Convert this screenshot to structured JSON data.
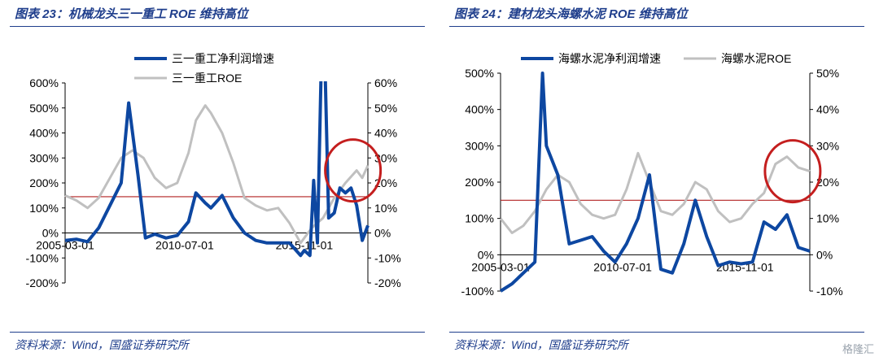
{
  "colors": {
    "primary": "#0d47a1",
    "secondary": "#c0c0c0",
    "threshold": "#b22222",
    "highlight": "#c41e1e",
    "text_accent": "#1f3e8c"
  },
  "watermark": "格隆汇",
  "panels": [
    {
      "title": "图表 23：机械龙头三一重工 ROE 维持高位",
      "source": "资料来源：Wind，国盛证券研究所"
    },
    {
      "title": "图表 24：建材龙头海螺水泥 ROE 维持高位",
      "source": "资料来源：Wind，国盛证券研究所"
    }
  ],
  "chart_data": [
    {
      "type": "line",
      "x_ticks": [
        "2005-03-01",
        "2010-07-01",
        "2015-11-01"
      ],
      "x_range": [
        "2005-03-01",
        "2018-09-01"
      ],
      "left_axis": {
        "range": [
          -200,
          600
        ],
        "ticks": [
          "-200%",
          "-100%",
          "0%",
          "100%",
          "200%",
          "300%",
          "400%",
          "500%",
          "600%"
        ]
      },
      "right_axis": {
        "range": [
          -20,
          60
        ],
        "ticks": [
          "-20%",
          "-10%",
          "0%",
          "10%",
          "20%",
          "30%",
          "40%",
          "50%",
          "60%"
        ]
      },
      "threshold_right": 14.5,
      "highlight": {
        "x": "2018-01-01",
        "y_right": 25
      },
      "legend_position": "top",
      "series": [
        {
          "name": "三一重工净利润增速",
          "axis": "left",
          "x": [
            "2005-03",
            "2005-09",
            "2006-03",
            "2006-09",
            "2007-03",
            "2007-09",
            "2008-01",
            "2008-06",
            "2008-10",
            "2009-03",
            "2009-09",
            "2010-03",
            "2010-09",
            "2011-01",
            "2011-06",
            "2011-09",
            "2012-03",
            "2012-09",
            "2013-03",
            "2013-09",
            "2014-03",
            "2014-09",
            "2015-03",
            "2015-09",
            "2015-11",
            "2016-02",
            "2016-04",
            "2016-06",
            "2016-09",
            "2016-12",
            "2017-03",
            "2017-06",
            "2017-09",
            "2017-12",
            "2018-03",
            "2018-06",
            "2018-09"
          ],
          "values": [
            -30,
            -25,
            -35,
            20,
            110,
            200,
            520,
            230,
            -20,
            -5,
            -20,
            -10,
            45,
            160,
            120,
            100,
            150,
            60,
            0,
            -30,
            -40,
            -40,
            -40,
            -90,
            -70,
            -90,
            210,
            -40,
            1000,
            60,
            80,
            180,
            160,
            180,
            110,
            -30,
            30
          ]
        },
        {
          "name": "三一重工ROE",
          "axis": "right",
          "x": [
            "2005-03",
            "2005-09",
            "2006-03",
            "2006-09",
            "2007-03",
            "2007-09",
            "2008-03",
            "2008-09",
            "2009-03",
            "2009-09",
            "2010-03",
            "2010-09",
            "2011-01",
            "2011-06",
            "2011-09",
            "2012-03",
            "2012-09",
            "2013-03",
            "2013-09",
            "2014-03",
            "2014-09",
            "2015-03",
            "2015-09",
            "2016-03",
            "2016-09",
            "2017-03",
            "2017-09",
            "2018-03",
            "2018-06",
            "2018-09"
          ],
          "values": [
            15,
            13,
            10,
            14,
            22,
            30,
            33,
            30,
            22,
            18,
            20,
            32,
            45,
            51,
            48,
            40,
            28,
            14,
            11,
            9,
            10,
            4,
            -4,
            2,
            6,
            14,
            20,
            25,
            22,
            27
          ]
        }
      ]
    },
    {
      "type": "line",
      "x_ticks": [
        "2005-03-01",
        "2010-07-01",
        "2015-11-01"
      ],
      "x_range": [
        "2005-03-01",
        "2018-09-01"
      ],
      "left_axis": {
        "range": [
          -100,
          500
        ],
        "ticks": [
          "-100%",
          "0%",
          "100%",
          "200%",
          "300%",
          "400%",
          "500%"
        ]
      },
      "right_axis": {
        "range": [
          -10,
          50
        ],
        "ticks": [
          "-10%",
          "0%",
          "10%",
          "20%",
          "30%",
          "40%",
          "50%"
        ]
      },
      "threshold_right": 15,
      "highlight": {
        "x": "2017-12-01",
        "y_right": 23
      },
      "legend_position": "top",
      "series": [
        {
          "name": "海螺水泥净利润增速",
          "axis": "left",
          "x": [
            "2005-03",
            "2005-09",
            "2006-03",
            "2006-09",
            "2007-01",
            "2007-03",
            "2007-09",
            "2008-03",
            "2008-09",
            "2009-03",
            "2009-09",
            "2010-03",
            "2010-09",
            "2011-03",
            "2011-09",
            "2012-03",
            "2012-09",
            "2013-03",
            "2013-09",
            "2014-03",
            "2014-09",
            "2015-03",
            "2015-09",
            "2016-03",
            "2016-09",
            "2017-03",
            "2017-09",
            "2018-03",
            "2018-09"
          ],
          "values": [
            -100,
            -80,
            -50,
            -20,
            500,
            300,
            220,
            30,
            40,
            50,
            10,
            -20,
            30,
            100,
            220,
            -40,
            -50,
            30,
            150,
            50,
            -30,
            -20,
            -25,
            -20,
            90,
            70,
            110,
            20,
            10
          ]
        },
        {
          "name": "海螺水泥ROE",
          "axis": "right",
          "x": [
            "2005-03",
            "2005-09",
            "2006-03",
            "2006-09",
            "2007-03",
            "2007-09",
            "2008-03",
            "2008-09",
            "2009-03",
            "2009-09",
            "2010-03",
            "2010-09",
            "2011-03",
            "2011-09",
            "2012-03",
            "2012-09",
            "2013-03",
            "2013-09",
            "2014-03",
            "2014-09",
            "2015-03",
            "2015-09",
            "2016-03",
            "2016-09",
            "2017-03",
            "2017-09",
            "2018-03",
            "2018-09"
          ],
          "values": [
            10,
            6,
            8,
            12,
            18,
            22,
            20,
            14,
            11,
            10,
            11,
            18,
            28,
            20,
            12,
            11,
            14,
            20,
            18,
            12,
            9,
            10,
            14,
            17,
            25,
            27,
            24,
            23
          ]
        }
      ]
    }
  ]
}
